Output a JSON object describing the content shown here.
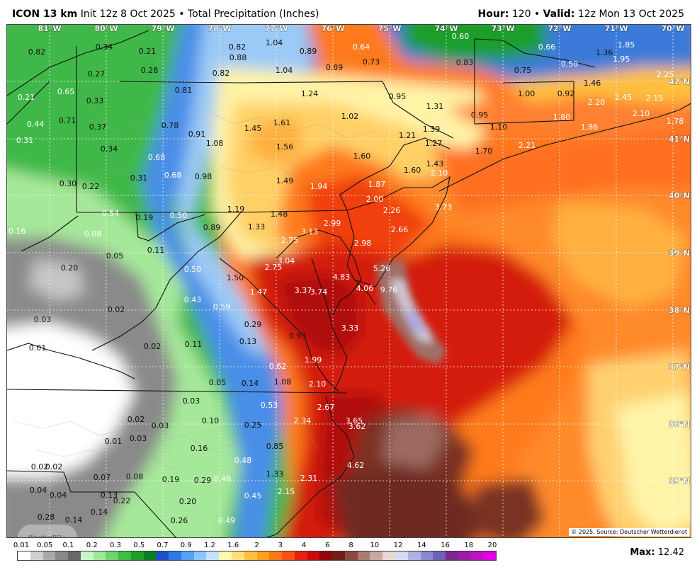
{
  "header": {
    "model": "ICON 13 km",
    "init": "Init 12z 8 Oct 2025",
    "separator": "•",
    "product": "Total Precipitation (Inches)",
    "hour_label": "Hour:",
    "hour_value": "120",
    "valid_label": "Valid:",
    "valid_value": "12z Mon 13 Oct 2025"
  },
  "map": {
    "longitude_labels": [
      "81°W",
      "80°W",
      "79°W",
      "78°W",
      "77°W",
      "76°W",
      "75°W",
      "74°W",
      "73°W",
      "72°W",
      "71°W",
      "70°W"
    ],
    "latitude_labels": [
      "42°N",
      "41°N",
      "40°N",
      "39°N",
      "38°N",
      "37°N",
      "36°N",
      "35°N"
    ],
    "copyright": "© 2025. Source: Deutscher Wetterdienst",
    "logo": "WeatherBELL",
    "values": [
      {
        "t": "0.82",
        "c": "dark"
      },
      {
        "t": "0.34",
        "c": "dark"
      },
      {
        "t": "0.21",
        "c": "dark"
      },
      {
        "t": "0.82",
        "c": "dark"
      },
      {
        "t": "1.04",
        "c": "dark"
      },
      {
        "t": "0.89",
        "c": "dark"
      },
      {
        "t": "0.64",
        "c": "light"
      },
      {
        "t": "0.60",
        "c": "light"
      },
      {
        "t": "0.66",
        "c": "light"
      },
      {
        "t": "1.36",
        "c": "dark"
      },
      {
        "t": "1.85",
        "c": "light"
      },
      {
        "t": "0.88",
        "c": "dark"
      },
      {
        "t": "0.73",
        "c": "dark"
      },
      {
        "t": "0.83",
        "c": "dark"
      },
      {
        "t": "0.50",
        "c": "light"
      },
      {
        "t": "1.95",
        "c": "light"
      },
      {
        "t": "0.27",
        "c": "dark"
      },
      {
        "t": "0.28",
        "c": "dark"
      },
      {
        "t": "0.82",
        "c": "dark"
      },
      {
        "t": "1.04",
        "c": "dark"
      },
      {
        "t": "0.89",
        "c": "dark"
      },
      {
        "t": "0.75",
        "c": "dark"
      },
      {
        "t": "2.25",
        "c": "light"
      },
      {
        "t": "0.65",
        "c": "light"
      },
      {
        "t": "0.81",
        "c": "dark"
      },
      {
        "t": "1.24",
        "c": "dark"
      },
      {
        "t": "0.95",
        "c": "dark"
      },
      {
        "t": "1.00",
        "c": "dark"
      },
      {
        "t": "0.92",
        "c": "dark"
      },
      {
        "t": "1.46",
        "c": "dark"
      },
      {
        "t": "0.21",
        "c": "light"
      },
      {
        "t": "0.33",
        "c": "dark"
      },
      {
        "t": "1.31",
        "c": "dark"
      },
      {
        "t": "2.20",
        "c": "light"
      },
      {
        "t": "2.45",
        "c": "light"
      },
      {
        "t": "2.15",
        "c": "light"
      },
      {
        "t": "1.02",
        "c": "dark"
      },
      {
        "t": "0.95",
        "c": "dark"
      },
      {
        "t": "2.10",
        "c": "light"
      },
      {
        "t": "0.44",
        "c": "light"
      },
      {
        "t": "0.71",
        "c": "dark"
      },
      {
        "t": "0.37",
        "c": "dark"
      },
      {
        "t": "0.78",
        "c": "dark"
      },
      {
        "t": "1.45",
        "c": "dark"
      },
      {
        "t": "1.61",
        "c": "dark"
      },
      {
        "t": "1.10",
        "c": "dark"
      },
      {
        "t": "1.80",
        "c": "light"
      },
      {
        "t": "1.86",
        "c": "light"
      },
      {
        "t": "1.78",
        "c": "light"
      },
      {
        "t": "0.91",
        "c": "dark"
      },
      {
        "t": "1.21",
        "c": "dark"
      },
      {
        "t": "1.39",
        "c": "dark"
      },
      {
        "t": "0.31",
        "c": "light"
      },
      {
        "t": "1.08",
        "c": "dark"
      },
      {
        "t": "1.27",
        "c": "dark"
      },
      {
        "t": "2.21",
        "c": "light"
      },
      {
        "t": "0.34",
        "c": "dark"
      },
      {
        "t": "1.56",
        "c": "dark"
      },
      {
        "t": "1.70",
        "c": "dark"
      },
      {
        "t": "0.68",
        "c": "light"
      },
      {
        "t": "1.60",
        "c": "dark"
      },
      {
        "t": "1.43",
        "c": "dark"
      },
      {
        "t": "0.68",
        "c": "light"
      },
      {
        "t": "0.98",
        "c": "dark"
      },
      {
        "t": "1.60",
        "c": "dark"
      },
      {
        "t": "2.10",
        "c": "light"
      },
      {
        "t": "0.30",
        "c": "dark"
      },
      {
        "t": "0.31",
        "c": "dark"
      },
      {
        "t": "1.49",
        "c": "dark"
      },
      {
        "t": "1.94",
        "c": "light"
      },
      {
        "t": "1.87",
        "c": "light"
      },
      {
        "t": "0.22",
        "c": "dark"
      },
      {
        "t": "2.00",
        "c": "light"
      },
      {
        "t": "1.19",
        "c": "dark"
      },
      {
        "t": "2.26",
        "c": "light"
      },
      {
        "t": "3.73",
        "c": "light"
      },
      {
        "t": "0.54",
        "c": "light"
      },
      {
        "t": "0.19",
        "c": "dark"
      },
      {
        "t": "0.50",
        "c": "light"
      },
      {
        "t": "1.48",
        "c": "dark"
      },
      {
        "t": "0.89",
        "c": "dark"
      },
      {
        "t": "1.33",
        "c": "dark"
      },
      {
        "t": "2.99",
        "c": "light"
      },
      {
        "t": "0.16",
        "c": "light"
      },
      {
        "t": "0.08",
        "c": "light"
      },
      {
        "t": "3.13",
        "c": "light"
      },
      {
        "t": "2.66",
        "c": "light"
      },
      {
        "t": "2.75",
        "c": "light"
      },
      {
        "t": "2.98",
        "c": "light"
      },
      {
        "t": "0.11",
        "c": "dark"
      },
      {
        "t": "0.05",
        "c": "dark"
      },
      {
        "t": "3.04",
        "c": "light"
      },
      {
        "t": "2.75",
        "c": "light"
      },
      {
        "t": "5.26",
        "c": "light"
      },
      {
        "t": "0.20",
        "c": "dark"
      },
      {
        "t": "0.50",
        "c": "light"
      },
      {
        "t": "1.50",
        "c": "dark"
      },
      {
        "t": "4.83",
        "c": "light"
      },
      {
        "t": "4.06",
        "c": "light"
      },
      {
        "t": "9.76",
        "c": "light"
      },
      {
        "t": "1.47",
        "c": "light"
      },
      {
        "t": "3.37",
        "c": "light"
      },
      {
        "t": "3.74",
        "c": "light"
      },
      {
        "t": "0.43",
        "c": "light"
      },
      {
        "t": "0.59",
        "c": "light"
      },
      {
        "t": "0.02",
        "c": "dark"
      },
      {
        "t": "0.03",
        "c": "dark"
      },
      {
        "t": "0.29",
        "c": "dark"
      },
      {
        "t": "3.33",
        "c": "light"
      },
      {
        "t": "0.93",
        "c": "dark"
      },
      {
        "t": "0.13",
        "c": "dark"
      },
      {
        "t": "0.01",
        "c": "dark"
      },
      {
        "t": "0.02",
        "c": "dark"
      },
      {
        "t": "0.11",
        "c": "dark"
      },
      {
        "t": "1.99",
        "c": "light"
      },
      {
        "t": "0.62",
        "c": "light"
      },
      {
        "t": "0.05",
        "c": "dark"
      },
      {
        "t": "0.14",
        "c": "dark"
      },
      {
        "t": "1.08",
        "c": "dark"
      },
      {
        "t": "2.10",
        "c": "light"
      },
      {
        "t": "0.03",
        "c": "dark"
      },
      {
        "t": "0.53",
        "c": "light"
      },
      {
        "t": "2.67",
        "c": "light"
      },
      {
        "t": "0.02",
        "c": "dark"
      },
      {
        "t": "0.10",
        "c": "dark"
      },
      {
        "t": "0.03",
        "c": "dark"
      },
      {
        "t": "0.25",
        "c": "dark"
      },
      {
        "t": "2.34",
        "c": "light"
      },
      {
        "t": "3.65",
        "c": "light"
      },
      {
        "t": "3.62",
        "c": "light"
      },
      {
        "t": "0.01",
        "c": "dark"
      },
      {
        "t": "0.03",
        "c": "dark"
      },
      {
        "t": "0.16",
        "c": "dark"
      },
      {
        "t": "0.85",
        "c": "dark"
      },
      {
        "t": "0.48",
        "c": "light"
      },
      {
        "t": "0.02",
        "c": "dark"
      },
      {
        "t": "0.02",
        "c": "dark"
      },
      {
        "t": "4.62",
        "c": "light"
      },
      {
        "t": "0.07",
        "c": "dark"
      },
      {
        "t": "0.08",
        "c": "dark"
      },
      {
        "t": "0.19",
        "c": "dark"
      },
      {
        "t": "0.29",
        "c": "dark"
      },
      {
        "t": "0.48",
        "c": "light"
      },
      {
        "t": "1.33",
        "c": "dark"
      },
      {
        "t": "2.31",
        "c": "light"
      },
      {
        "t": "0.04",
        "c": "dark"
      },
      {
        "t": "0.04",
        "c": "dark"
      },
      {
        "t": "0.13",
        "c": "dark"
      },
      {
        "t": "0.22",
        "c": "dark"
      },
      {
        "t": "0.20",
        "c": "dark"
      },
      {
        "t": "0.45",
        "c": "light"
      },
      {
        "t": "2.15",
        "c": "light"
      },
      {
        "t": "0.28",
        "c": "dark"
      },
      {
        "t": "0.14",
        "c": "dark"
      },
      {
        "t": "0.14",
        "c": "dark"
      },
      {
        "t": "0.26",
        "c": "dark"
      },
      {
        "t": "0.49",
        "c": "light"
      }
    ]
  },
  "legend": {
    "ticks": [
      "0.01",
      "0.05",
      "0.1",
      "0.2",
      "0.3",
      "0.5",
      "0.7",
      "0.9",
      "1.2",
      "1.6",
      "2",
      "3",
      "4",
      "6",
      "8",
      "10",
      "12",
      "14",
      "16",
      "18",
      "20"
    ],
    "colors": [
      "#ffffff",
      "#cfcfcf",
      "#a9a9a9",
      "#888888",
      "#686868",
      "#c9f6c3",
      "#9fe89a",
      "#6fd46e",
      "#3fbc41",
      "#1e9e2c",
      "#0a7e22",
      "#1e50c8",
      "#2e78e6",
      "#56a0f6",
      "#8cc4fc",
      "#c4e4fc",
      "#fff8b0",
      "#ffe07a",
      "#ffc040",
      "#ffa020",
      "#ff7818",
      "#ff5010",
      "#e81e10",
      "#c80c0c",
      "#960606",
      "#6e2018",
      "#8a4a40",
      "#a87a70",
      "#c8a8a0",
      "#e8d8d2",
      "#d8d8f0",
      "#b0b0e4",
      "#8c88d0",
      "#6e60b8",
      "#7a2a8a",
      "#9c1ca8",
      "#c010c0",
      "#e000e0"
    ],
    "max_label": "Max:",
    "max_value": "12.42"
  }
}
